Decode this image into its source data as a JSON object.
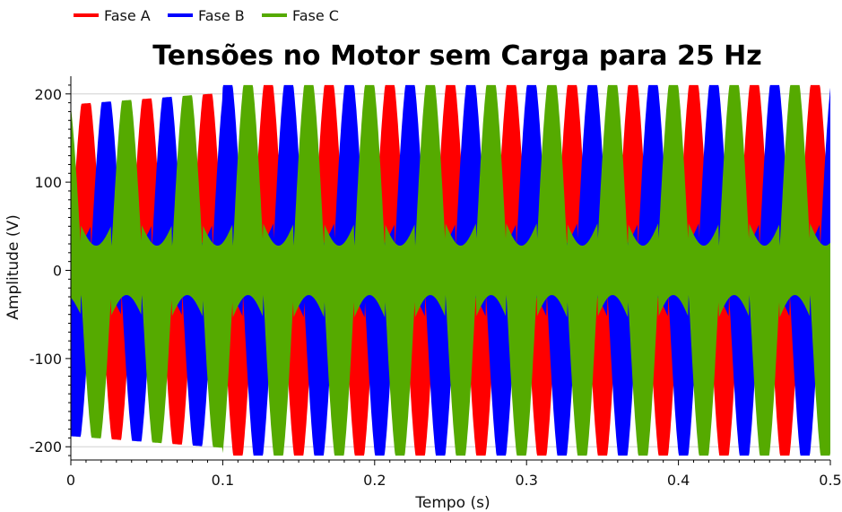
{
  "chart_data": {
    "type": "line",
    "title": "Tensões no Motor sem Carga para 25 Hz",
    "xlabel": "Tempo (s)",
    "ylabel": "Amplitude (V)",
    "xlim": [
      0,
      0.5
    ],
    "ylim": [
      -215,
      215
    ],
    "x_ticks": [
      "0",
      "0.1",
      "0.2",
      "0.3",
      "0.4",
      "0.5"
    ],
    "y_ticks": [
      "-200",
      "-100",
      "0",
      "100",
      "200"
    ],
    "grid": true,
    "legend_position": "top-left",
    "frequency_hz": 25,
    "series": [
      {
        "name": "Fase A",
        "color": "#ff0000",
        "amplitude_start": 188,
        "amplitude_steady": 210
      },
      {
        "name": "Fase B",
        "color": "#0000ff",
        "amplitude_start": 188,
        "amplitude_steady": 210
      },
      {
        "name": "Fase C",
        "color": "#55aa00",
        "amplitude_start": 188,
        "amplitude_steady": 210
      }
    ]
  }
}
